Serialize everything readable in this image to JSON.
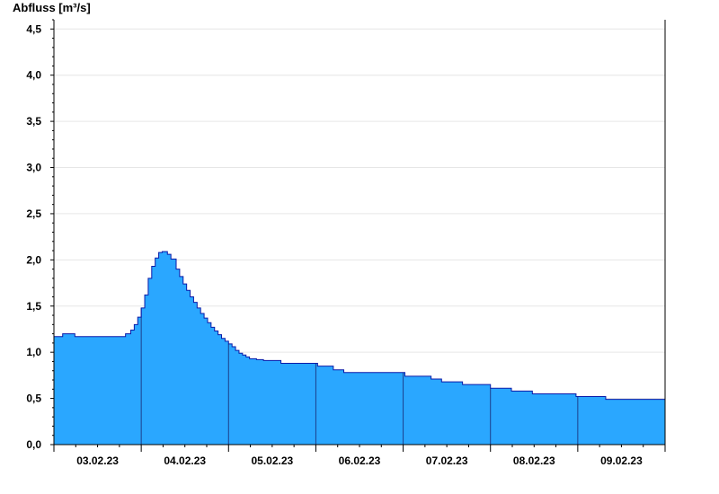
{
  "chart_data": {
    "type": "area",
    "ylabel": "Abfluss [m³/s]",
    "ylim": [
      0,
      4.6
    ],
    "xlim": [
      0,
      7
    ],
    "grid": true,
    "fill_color": "#2aa7ff",
    "line_color": "#0a1aa8",
    "y_ticks": [
      "0,0",
      "0,5",
      "1,0",
      "1,5",
      "2,0",
      "2,5",
      "3,0",
      "3,5",
      "4,0",
      "4,5"
    ],
    "y_tick_values": [
      0,
      0.5,
      1.0,
      1.5,
      2.0,
      2.5,
      3.0,
      3.5,
      4.0,
      4.5
    ],
    "x_tick_labels": [
      "03.02.23",
      "04.02.23",
      "05.02.23",
      "06.02.23",
      "07.02.23",
      "08.02.23",
      "09.02.23"
    ],
    "x_note": "x values in days since first plotted point (03.02.23 00:00)",
    "x": [
      0,
      0.08,
      0.1,
      0.22,
      0.24,
      0.8,
      0.82,
      0.88,
      0.92,
      0.96,
      1.0,
      1.04,
      1.08,
      1.12,
      1.16,
      1.2,
      1.24,
      1.28,
      1.3,
      1.34,
      1.4,
      1.44,
      1.48,
      1.52,
      1.56,
      1.6,
      1.64,
      1.68,
      1.72,
      1.76,
      1.8,
      1.84,
      1.88,
      1.92,
      1.96,
      2.0,
      2.04,
      2.08,
      2.12,
      2.16,
      2.2,
      2.24,
      2.28,
      2.32,
      2.36,
      2.4,
      2.44,
      2.48,
      2.56,
      2.6,
      2.78,
      2.8,
      3.0,
      3.02,
      3.18,
      3.2,
      3.3,
      3.32,
      3.46,
      3.48,
      4.0,
      4.02,
      4.3,
      4.32,
      4.42,
      4.44,
      4.66,
      4.68,
      4.98,
      5.0,
      5.22,
      5.24,
      5.46,
      5.48,
      5.96,
      5.98,
      6.3,
      6.32,
      7.0
    ],
    "values": [
      1.17,
      1.17,
      1.2,
      1.2,
      1.17,
      1.17,
      1.2,
      1.24,
      1.3,
      1.38,
      1.48,
      1.62,
      1.8,
      1.93,
      2.02,
      2.08,
      2.09,
      2.09,
      2.06,
      2.01,
      1.9,
      1.82,
      1.74,
      1.67,
      1.6,
      1.54,
      1.48,
      1.42,
      1.37,
      1.32,
      1.27,
      1.23,
      1.19,
      1.15,
      1.12,
      1.09,
      1.06,
      1.02,
      0.99,
      0.97,
      0.95,
      0.93,
      0.93,
      0.92,
      0.92,
      0.91,
      0.91,
      0.91,
      0.91,
      0.88,
      0.88,
      0.88,
      0.88,
      0.85,
      0.85,
      0.81,
      0.81,
      0.78,
      0.78,
      0.78,
      0.78,
      0.74,
      0.74,
      0.71,
      0.71,
      0.68,
      0.68,
      0.65,
      0.65,
      0.61,
      0.61,
      0.58,
      0.58,
      0.55,
      0.55,
      0.52,
      0.52,
      0.49,
      0.46
    ]
  }
}
